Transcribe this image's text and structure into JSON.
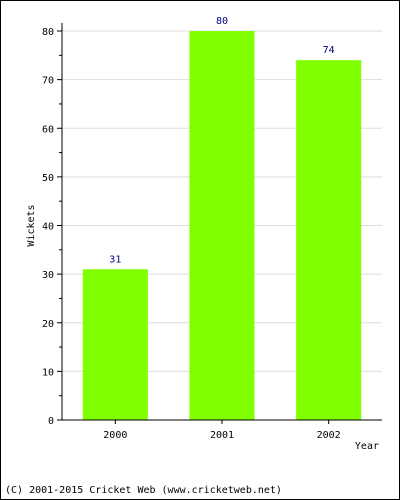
{
  "chart_data": {
    "type": "bar",
    "categories": [
      "2000",
      "2001",
      "2002"
    ],
    "values": [
      31,
      80,
      74
    ],
    "xlabel": "Year",
    "ylabel": "Wickets",
    "ylim": [
      0,
      80
    ],
    "yticks": [
      0,
      10,
      20,
      30,
      40,
      50,
      60,
      70,
      80
    ],
    "grid": true,
    "bar_color": "#80ff00",
    "value_label_color": "#000080",
    "grid_color": "#dddddd"
  },
  "footer": {
    "copyright": "(C) 2001-2015 Cricket Web (www.cricketweb.net)"
  }
}
